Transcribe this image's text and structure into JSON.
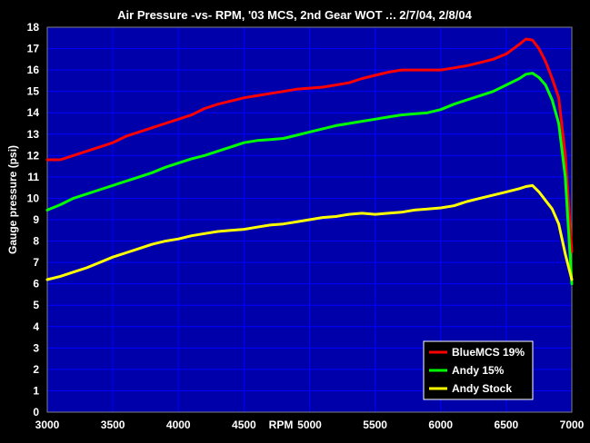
{
  "chart_data": {
    "type": "line",
    "title": "Air Pressure -vs- RPM, '03 MCS, 2nd Gear WOT .:. 2/7/04, 2/8/04",
    "xlabel": "RPM",
    "ylabel": "Gauge pressure (psi)",
    "xlim": [
      3000,
      7000
    ],
    "ylim": [
      0,
      18
    ],
    "x_ticks": [
      3000,
      3500,
      4000,
      4500,
      5000,
      5500,
      6000,
      6500,
      7000
    ],
    "y_ticks": [
      0,
      1,
      2,
      3,
      4,
      5,
      6,
      7,
      8,
      9,
      10,
      11,
      12,
      13,
      14,
      15,
      16,
      17,
      18
    ],
    "grid": true,
    "legend_position": "bottom-right",
    "colors": {
      "background": "#000000",
      "plot_background": "#0000aa",
      "grid": "#0000ff",
      "text": "#ffffff"
    },
    "series": [
      {
        "name": "BlueMCS 19%",
        "color": "#ff0000",
        "x": [
          3000,
          3100,
          3200,
          3300,
          3400,
          3500,
          3600,
          3700,
          3800,
          3900,
          4000,
          4100,
          4200,
          4300,
          4400,
          4500,
          4600,
          4700,
          4800,
          4900,
          5000,
          5100,
          5200,
          5300,
          5400,
          5500,
          5600,
          5700,
          5800,
          5900,
          6000,
          6100,
          6200,
          6300,
          6400,
          6500,
          6600,
          6650,
          6700,
          6750,
          6800,
          6850,
          6900,
          6950,
          7000
        ],
        "y": [
          11.8,
          11.8,
          12.0,
          12.2,
          12.4,
          12.6,
          12.9,
          13.1,
          13.3,
          13.5,
          13.7,
          13.9,
          14.2,
          14.4,
          14.55,
          14.7,
          14.8,
          14.9,
          15.0,
          15.1,
          15.15,
          15.2,
          15.3,
          15.4,
          15.6,
          15.75,
          15.9,
          16.0,
          16.0,
          16.0,
          16.0,
          16.1,
          16.2,
          16.35,
          16.5,
          16.75,
          17.2,
          17.45,
          17.4,
          17.0,
          16.4,
          15.6,
          14.7,
          12.0,
          7.5
        ]
      },
      {
        "name": "Andy 15%",
        "color": "#00ff00",
        "x": [
          3000,
          3100,
          3200,
          3300,
          3400,
          3500,
          3600,
          3700,
          3800,
          3900,
          4000,
          4100,
          4200,
          4300,
          4400,
          4500,
          4600,
          4700,
          4800,
          4900,
          5000,
          5100,
          5200,
          5300,
          5400,
          5500,
          5600,
          5700,
          5800,
          5900,
          6000,
          6100,
          6200,
          6300,
          6400,
          6500,
          6600,
          6650,
          6700,
          6750,
          6800,
          6850,
          6900,
          6950,
          7000
        ],
        "y": [
          9.45,
          9.7,
          10.0,
          10.2,
          10.4,
          10.6,
          10.8,
          11.0,
          11.2,
          11.45,
          11.65,
          11.85,
          12.0,
          12.2,
          12.4,
          12.6,
          12.7,
          12.75,
          12.8,
          12.95,
          13.1,
          13.25,
          13.4,
          13.5,
          13.6,
          13.7,
          13.8,
          13.9,
          13.95,
          14.0,
          14.15,
          14.4,
          14.6,
          14.8,
          15.0,
          15.3,
          15.6,
          15.8,
          15.85,
          15.65,
          15.3,
          14.6,
          13.5,
          11.0,
          6.0
        ]
      },
      {
        "name": "Andy Stock",
        "color": "#ffff00",
        "x": [
          3000,
          3100,
          3200,
          3300,
          3400,
          3500,
          3600,
          3700,
          3800,
          3900,
          4000,
          4100,
          4200,
          4300,
          4400,
          4500,
          4600,
          4700,
          4800,
          4900,
          5000,
          5100,
          5200,
          5300,
          5400,
          5500,
          5600,
          5700,
          5800,
          5900,
          6000,
          6100,
          6200,
          6300,
          6400,
          6500,
          6600,
          6650,
          6700,
          6750,
          6800,
          6850,
          6900,
          6950,
          7000
        ],
        "y": [
          6.2,
          6.35,
          6.55,
          6.75,
          7.0,
          7.25,
          7.45,
          7.65,
          7.85,
          8.0,
          8.1,
          8.25,
          8.35,
          8.45,
          8.5,
          8.55,
          8.65,
          8.75,
          8.8,
          8.9,
          9.0,
          9.1,
          9.15,
          9.25,
          9.3,
          9.25,
          9.3,
          9.35,
          9.45,
          9.5,
          9.55,
          9.65,
          9.85,
          10.0,
          10.15,
          10.3,
          10.45,
          10.55,
          10.6,
          10.3,
          9.9,
          9.5,
          8.8,
          7.4,
          6.2
        ]
      }
    ]
  }
}
